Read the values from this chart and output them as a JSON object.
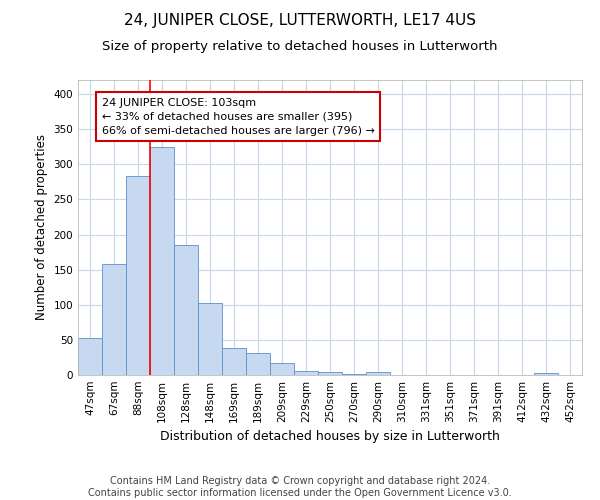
{
  "title": "24, JUNIPER CLOSE, LUTTERWORTH, LE17 4US",
  "subtitle": "Size of property relative to detached houses in Lutterworth",
  "xlabel": "Distribution of detached houses by size in Lutterworth",
  "ylabel": "Number of detached properties",
  "footer_line1": "Contains HM Land Registry data © Crown copyright and database right 2024.",
  "footer_line2": "Contains public sector information licensed under the Open Government Licence v3.0.",
  "categories": [
    "47sqm",
    "67sqm",
    "88sqm",
    "108sqm",
    "128sqm",
    "148sqm",
    "169sqm",
    "189sqm",
    "209sqm",
    "229sqm",
    "250sqm",
    "270sqm",
    "290sqm",
    "310sqm",
    "331sqm",
    "351sqm",
    "371sqm",
    "391sqm",
    "412sqm",
    "432sqm",
    "452sqm"
  ],
  "values": [
    53,
    158,
    283,
    325,
    185,
    103,
    38,
    32,
    17,
    6,
    4,
    1,
    4,
    0,
    0,
    0,
    0,
    0,
    0,
    3,
    0
  ],
  "bar_color": "#c6d9f0",
  "bar_edge_color": "#5b8fc9",
  "red_line_x": 2.5,
  "annotation_line1": "24 JUNIPER CLOSE: 103sqm",
  "annotation_line2": "← 33% of detached houses are smaller (395)",
  "annotation_line3": "66% of semi-detached houses are larger (796) →",
  "annotation_box_color": "#ffffff",
  "annotation_box_edge": "#cc0000",
  "ylim": [
    0,
    420
  ],
  "yticks": [
    0,
    50,
    100,
    150,
    200,
    250,
    300,
    350,
    400
  ],
  "background_color": "#ffffff",
  "plot_bg_color": "#ffffff",
  "grid_color": "#c8d8ea",
  "title_fontsize": 11,
  "subtitle_fontsize": 9.5,
  "xlabel_fontsize": 9,
  "ylabel_fontsize": 8.5,
  "tick_fontsize": 7.5,
  "footer_fontsize": 7,
  "annot_fontsize": 8
}
